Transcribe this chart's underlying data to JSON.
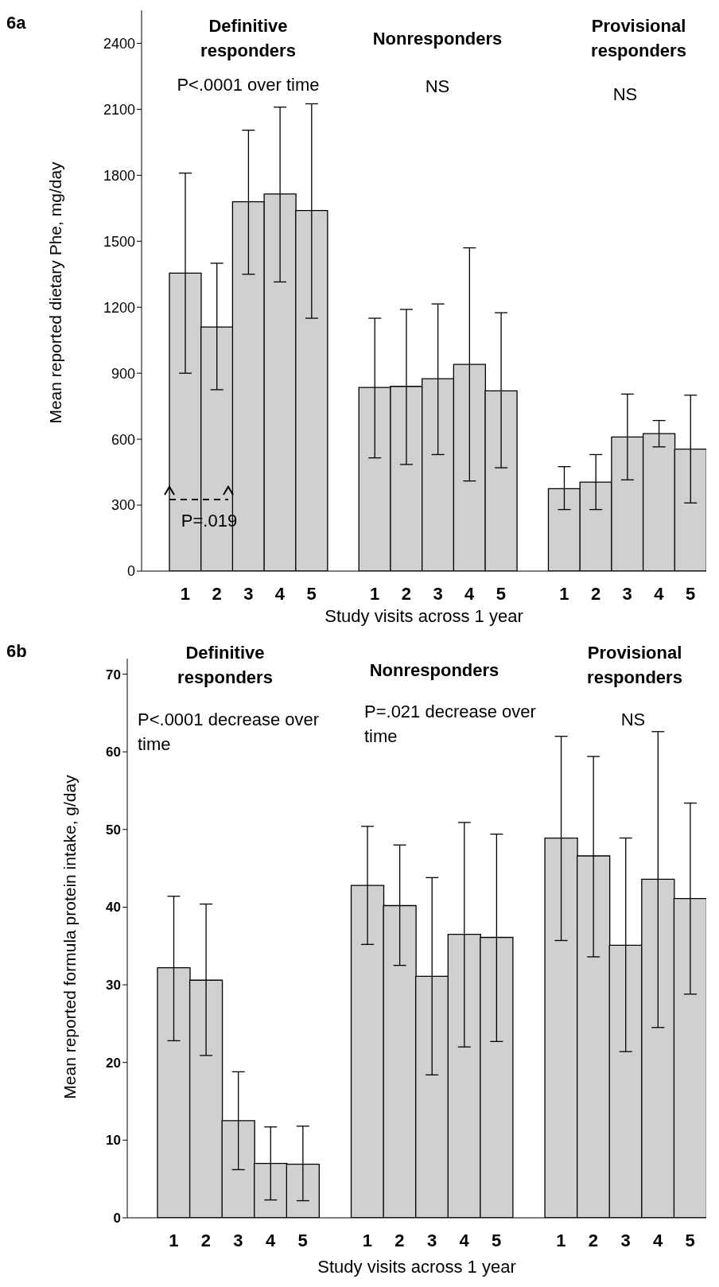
{
  "chart_data": [
    {
      "type": "bar",
      "title": "6a",
      "xlabel": "Study visits across 1 year",
      "ylabel": "Mean reported dietary Phe, mg/day",
      "categories": [
        "1",
        "2",
        "3",
        "4",
        "5",
        null,
        "1",
        "2",
        "3",
        "4",
        "5",
        null,
        "1",
        "2",
        "3",
        "4",
        "5"
      ],
      "color": "#d0d0d0",
      "values": [
        1355,
        1110,
        1680,
        1715,
        1640,
        null,
        835,
        840,
        875,
        940,
        820,
        null,
        375,
        405,
        610,
        625,
        555
      ],
      "errors": [
        [
          900,
          1810
        ],
        [
          825,
          1400
        ],
        [
          1350,
          2005
        ],
        [
          1315,
          2110
        ],
        [
          1150,
          2125
        ],
        null,
        [
          515,
          1150
        ],
        [
          485,
          1190
        ],
        [
          530,
          1215
        ],
        [
          410,
          1470
        ],
        [
          470,
          1175
        ],
        null,
        [
          280,
          475
        ],
        [
          280,
          530
        ],
        [
          415,
          805
        ],
        [
          565,
          685
        ],
        [
          310,
          800
        ]
      ],
      "ylim": [
        0,
        2550
      ],
      "yticks": [
        0,
        300,
        600,
        900,
        1200,
        1500,
        1800,
        2100,
        2400
      ],
      "annotations": [
        "Definitive responders",
        "Nonresponders",
        "Provisional responders",
        "P<.0001 over time",
        "NS",
        "NS",
        "P=.019"
      ]
    },
    {
      "type": "bar",
      "title": "6b",
      "xlabel": "Study visits across 1 year",
      "ylabel": "Mean reported formula protein intake, g/day",
      "categories": [
        "1",
        "2",
        "3",
        "4",
        "5",
        null,
        "1",
        "2",
        "3",
        "4",
        "5",
        null,
        "1",
        "2",
        "3",
        "4",
        "5"
      ],
      "color": "#d0d0d0",
      "values": [
        32.2,
        30.6,
        12.5,
        7.0,
        6.9,
        null,
        42.8,
        40.2,
        31.1,
        36.5,
        36.1,
        null,
        48.9,
        46.6,
        35.1,
        43.6,
        41.1
      ],
      "errors": [
        [
          22.8,
          41.4
        ],
        [
          20.9,
          40.4
        ],
        [
          6.2,
          18.8
        ],
        [
          2.3,
          11.7
        ],
        [
          2.2,
          11.8
        ],
        null,
        [
          35.2,
          50.4
        ],
        [
          32.5,
          48.0
        ],
        [
          18.4,
          43.8
        ],
        [
          22.0,
          50.9
        ],
        [
          22.7,
          49.4
        ],
        null,
        [
          35.7,
          62.0
        ],
        [
          33.6,
          59.4
        ],
        [
          21.4,
          48.9
        ],
        [
          24.5,
          62.6
        ],
        [
          28.8,
          53.4
        ]
      ],
      "ylim": [
        0,
        72
      ],
      "yticks": [
        0,
        10,
        20,
        30,
        40,
        50,
        60,
        70
      ],
      "annotations": [
        "Definitive responders",
        "Nonresponders",
        "Provisional responders",
        "P<.0001 decrease over time",
        "P=.021 decrease over time",
        "NS"
      ]
    }
  ]
}
